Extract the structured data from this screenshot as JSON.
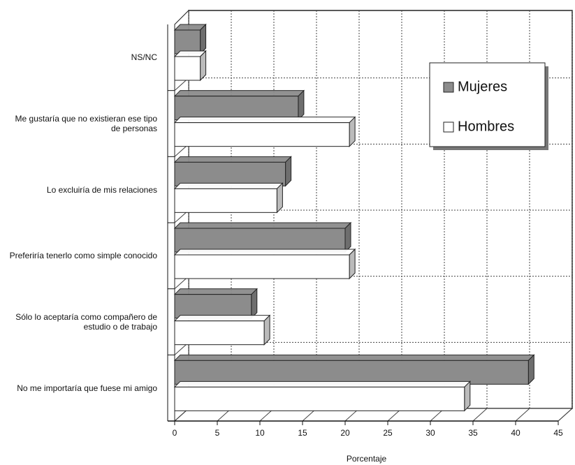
{
  "chart_data": {
    "type": "bar",
    "orientation": "horizontal",
    "three_d": true,
    "categories": [
      "NS/NC",
      "Me gustaría que no existieran ese tipo de personas",
      "Lo excluiría de mis relaciones",
      "Preferiría tenerlo como simple conocido",
      "Sólo lo aceptaría como compañero de estudio o de trabajo",
      "No me importaría que fuese mi amigo"
    ],
    "series": [
      {
        "name": "Mujeres",
        "color": "#8c8c8c",
        "values": [
          3,
          14.5,
          13,
          20,
          9,
          41.5
        ]
      },
      {
        "name": "Hombres",
        "color": "#ffffff",
        "values": [
          3,
          20.5,
          12,
          20.5,
          10.5,
          34
        ]
      }
    ],
    "xlabel": "Porcentaje",
    "xlim": [
      0,
      45
    ],
    "xticks": [
      0,
      5,
      10,
      15,
      20,
      25,
      30,
      35,
      40,
      45
    ],
    "grid": true,
    "legend": "upper right"
  }
}
